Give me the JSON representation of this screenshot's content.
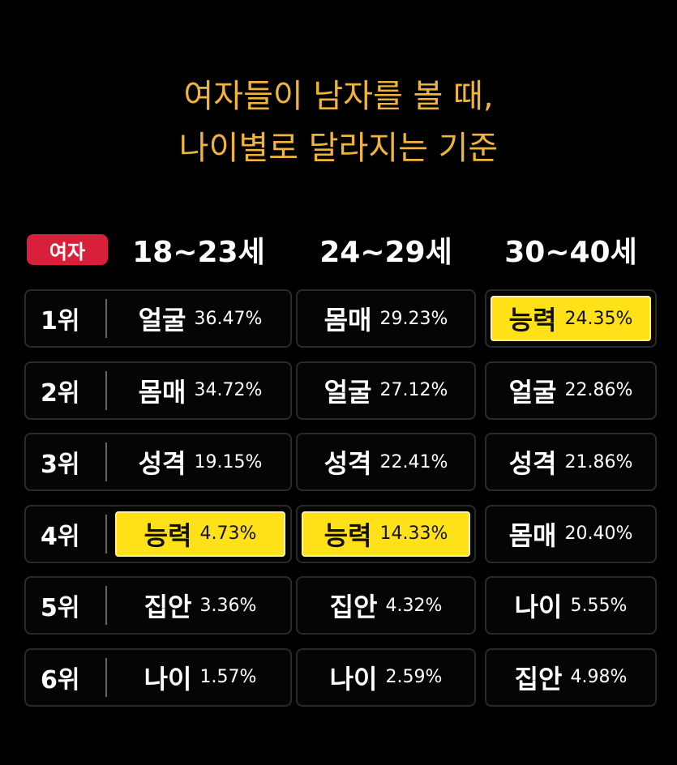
{
  "title": {
    "line1": "여자들이 남자를 볼 때,",
    "line2": "나이별로 달라지는 기준"
  },
  "table": {
    "badge": "여자",
    "columns": [
      "18~23세",
      "24~29세",
      "30~40세"
    ],
    "rows": [
      {
        "rank": "1위",
        "cells": [
          {
            "item": "얼굴",
            "percent": "36.47%",
            "highlight": false
          },
          {
            "item": "몸매",
            "percent": "29.23%",
            "highlight": false
          },
          {
            "item": "능력",
            "percent": "24.35%",
            "highlight": true
          }
        ]
      },
      {
        "rank": "2위",
        "cells": [
          {
            "item": "몸매",
            "percent": "34.72%",
            "highlight": false
          },
          {
            "item": "얼굴",
            "percent": "27.12%",
            "highlight": false
          },
          {
            "item": "얼굴",
            "percent": "22.86%",
            "highlight": false
          }
        ]
      },
      {
        "rank": "3위",
        "cells": [
          {
            "item": "성격",
            "percent": "19.15%",
            "highlight": false
          },
          {
            "item": "성격",
            "percent": "22.41%",
            "highlight": false
          },
          {
            "item": "성격",
            "percent": "21.86%",
            "highlight": false
          }
        ]
      },
      {
        "rank": "4위",
        "cells": [
          {
            "item": "능력",
            "percent": "4.73%",
            "highlight": true
          },
          {
            "item": "능력",
            "percent": "14.33%",
            "highlight": true
          },
          {
            "item": "몸매",
            "percent": "20.40%",
            "highlight": false
          }
        ]
      },
      {
        "rank": "5위",
        "cells": [
          {
            "item": "집안",
            "percent": "3.36%",
            "highlight": false
          },
          {
            "item": "집안",
            "percent": "4.32%",
            "highlight": false
          },
          {
            "item": "나이",
            "percent": "5.55%",
            "highlight": false
          }
        ]
      },
      {
        "rank": "6위",
        "cells": [
          {
            "item": "나이",
            "percent": "1.57%",
            "highlight": false
          },
          {
            "item": "나이",
            "percent": "2.59%",
            "highlight": false
          },
          {
            "item": "집안",
            "percent": "4.98%",
            "highlight": false
          }
        ]
      }
    ]
  }
}
